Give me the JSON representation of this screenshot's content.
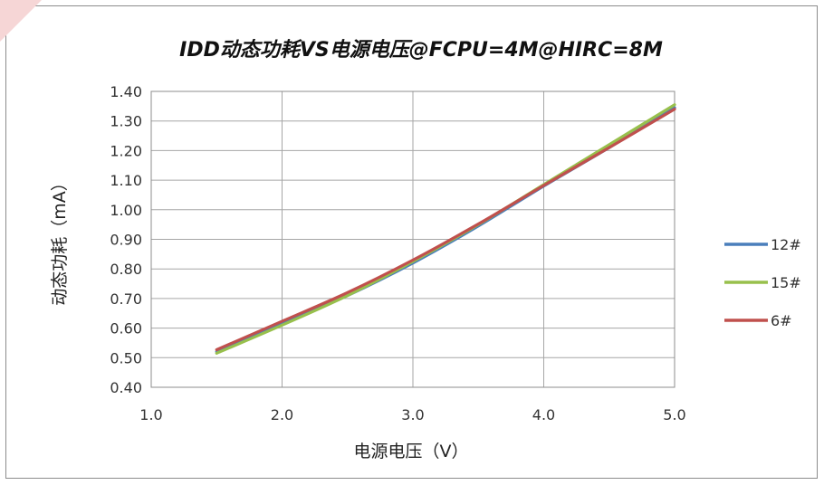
{
  "chart_data": {
    "type": "line",
    "title": "IDD动态功耗VS电源电压@FCPU=4M@HIRC=8M",
    "xlabel": "电源电压（V）",
    "ylabel": "动态功耗（mA）",
    "xlim": [
      1.0,
      5.0
    ],
    "ylim": [
      0.4,
      1.4
    ],
    "xticks": [
      "1.0",
      "2.0",
      "3.0",
      "4.0",
      "5.0"
    ],
    "yticks": [
      "0.40",
      "0.50",
      "0.60",
      "0.70",
      "0.80",
      "0.90",
      "1.00",
      "1.10",
      "1.20",
      "1.30",
      "1.40"
    ],
    "grid": true,
    "legend_position": "right",
    "series": [
      {
        "name": "12#",
        "color": "#4a7ebb",
        "x": [
          1.5,
          2.0,
          2.5,
          3.0,
          3.5,
          4.0,
          4.5,
          5.0
        ],
        "y": [
          0.52,
          0.615,
          0.71,
          0.82,
          0.945,
          1.08,
          1.21,
          1.345
        ]
      },
      {
        "name": "15#",
        "color": "#98c04c",
        "x": [
          1.5,
          2.0,
          2.5,
          3.0,
          3.5,
          4.0,
          4.5,
          5.0
        ],
        "y": [
          0.515,
          0.61,
          0.71,
          0.825,
          0.95,
          1.085,
          1.22,
          1.355
        ]
      },
      {
        "name": "6#",
        "color": "#c0504d",
        "x": [
          1.5,
          2.0,
          2.5,
          3.0,
          3.5,
          4.0,
          4.5,
          5.0
        ],
        "y": [
          0.527,
          0.623,
          0.72,
          0.83,
          0.952,
          1.082,
          1.21,
          1.34
        ]
      }
    ]
  }
}
